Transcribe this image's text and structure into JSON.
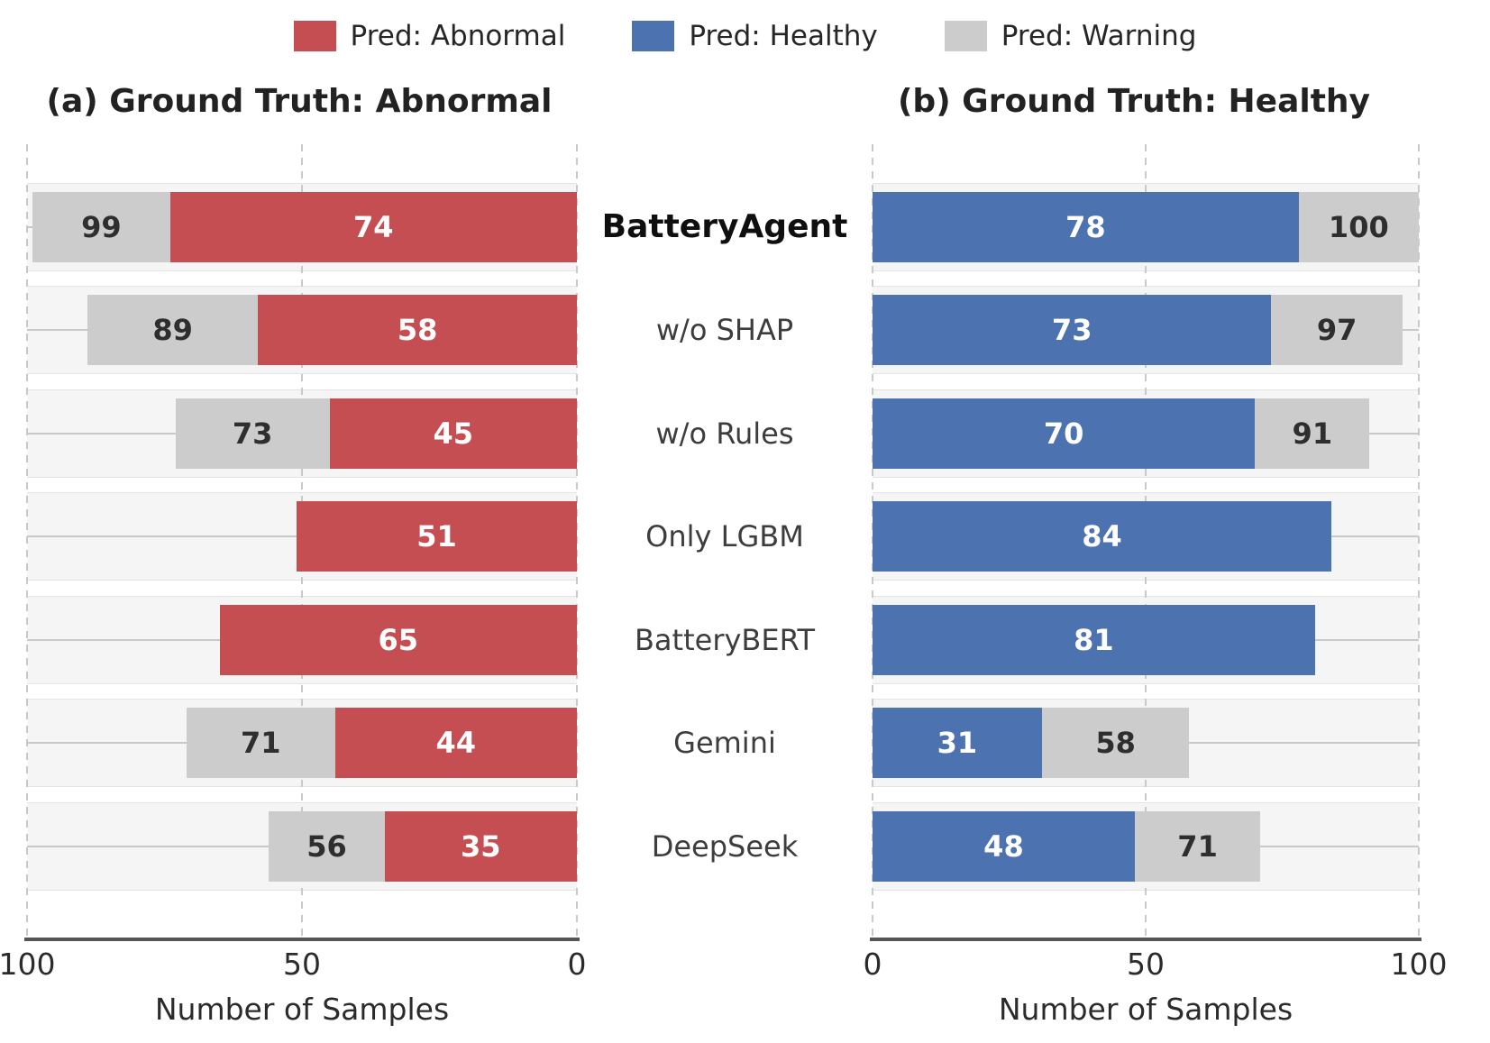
{
  "colors": {
    "abnormal": "#c44e52",
    "healthy": "#4c72b0",
    "warning": "#cccccc",
    "bar_label_on_color": "#ffffff",
    "bar_label_on_warning": "#2e2e2e",
    "grid": "#c9c9c9",
    "row_track": "#f5f5f5",
    "spine": "#555555"
  },
  "legend": {
    "items": [
      {
        "label": "Pred: Abnormal",
        "color": "#c44e52"
      },
      {
        "label": "Pred: Healthy",
        "color": "#4c72b0"
      },
      {
        "label": "Pred: Warning",
        "color": "#cccccc"
      }
    ]
  },
  "chart_data": {
    "type": "bar",
    "variant": "horizontal-stacked, two mirrored panels sharing center category axis",
    "categories": [
      "BatteryAgent",
      "w/o SHAP",
      "w/o Rules",
      "Only LGBM",
      "BatteryBERT",
      "Gemini",
      "DeepSeek"
    ],
    "emphasized_category": "BatteryAgent",
    "xlim": [
      0,
      100
    ],
    "grid": "dashed vertical at 0/50/100, solid light horizontal at row centers",
    "legend_position": "top center",
    "panels": [
      {
        "id": "a",
        "title": "(a) Ground Truth: Abnormal",
        "xlabel": "Number of Samples",
        "axis_reversed": true,
        "tick_labels": [
          "100",
          "50",
          "0"
        ],
        "pred_series_name": "Pred: Abnormal",
        "pred_color_key": "abnormal",
        "pred_values": [
          74,
          58,
          45,
          51,
          65,
          44,
          35
        ],
        "warning_series_name": "Pred: Warning",
        "warning_total_labels": [
          99,
          89,
          73,
          null,
          null,
          71,
          56
        ]
      },
      {
        "id": "b",
        "title": "(b) Ground Truth: Healthy",
        "xlabel": "Number of Samples",
        "axis_reversed": false,
        "tick_labels": [
          "0",
          "50",
          "100"
        ],
        "pred_series_name": "Pred: Healthy",
        "pred_color_key": "healthy",
        "pred_values": [
          78,
          73,
          70,
          84,
          81,
          31,
          48
        ],
        "warning_series_name": "Pred: Warning",
        "warning_total_labels": [
          100,
          97,
          91,
          null,
          null,
          58,
          71
        ]
      }
    ]
  }
}
